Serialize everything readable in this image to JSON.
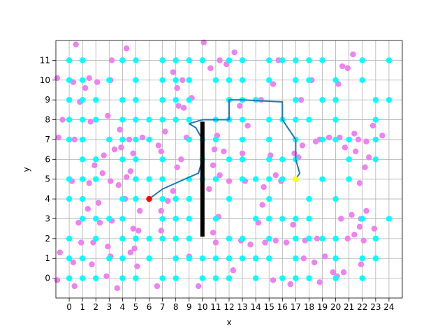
{
  "chart_data": {
    "type": "scatter",
    "x_label": "x",
    "y_label": "y",
    "grid": true,
    "xlim": [
      -1,
      25
    ],
    "ylim": [
      -1,
      12
    ],
    "xticks": [
      0,
      1,
      2,
      3,
      4,
      5,
      6,
      7,
      8,
      9,
      10,
      11,
      12,
      13,
      14,
      15,
      16,
      17,
      18,
      19,
      20,
      21,
      22,
      23,
      24
    ],
    "yticks": [
      0,
      1,
      2,
      3,
      4,
      5,
      6,
      7,
      8,
      9,
      10,
      11
    ],
    "series": [
      {
        "type": "scatter",
        "color": "#ee82ee",
        "x": [
          -0.9,
          0.5,
          0.3,
          1.2,
          1.5,
          2.1,
          3.2,
          4.3,
          3.1,
          -0.5,
          0.8,
          1.6,
          2.9,
          3.8,
          4.5,
          5.5,
          6.7,
          7.2,
          6.9,
          -0.8,
          0.4,
          2.6,
          3.4,
          3.9,
          4.8,
          1.9,
          2.5,
          3.1,
          3.7,
          4.3,
          4.6,
          0.2,
          1.5,
          2.2,
          4.2,
          5.3,
          6.9,
          7.4,
          1.4,
          0.7,
          2.3,
          3.2,
          4.8,
          5.2,
          6.9,
          0.9,
          1.8,
          2.9,
          4.6,
          4.9,
          -0.7,
          0.3,
          1.7,
          3.1,
          5.1,
          6.6,
          2.8,
          3.6,
          0.4,
          -0.9,
          7.8,
          8.5,
          8.1,
          9.2,
          10.1,
          10.6,
          11.3,
          11.8,
          12.4,
          8.2,
          8.6,
          11.1,
          10.9,
          11.6,
          8.8,
          8.4,
          8.1,
          7.8,
          10.8,
          10.5,
          11.3,
          12,
          11.2,
          10.8,
          11,
          9,
          8,
          9.7,
          12.3,
          12.9,
          13.6,
          13.2,
          13,
          12.8,
          13.4,
          14.4,
          15.3,
          15.7,
          14.6,
          14.5,
          14.2,
          14.7,
          15.5,
          16.3,
          15.1,
          15.5,
          15.9,
          16.9,
          17.2,
          17.5,
          18.5,
          18.8,
          19.5,
          17.4,
          18.2,
          16.8,
          17.7,
          18.6,
          17.6,
          18.4,
          19.2,
          19.8,
          20.1,
          20.6,
          18.8,
          16.6,
          15.3,
          20.2,
          20.5,
          20.9,
          21.3,
          20.3,
          20.7,
          21.4,
          21.7,
          22.3,
          21.5,
          22.5,
          22.8,
          23.5,
          22.2,
          21.8,
          22.3,
          21.2,
          21.9,
          21.4,
          22.1,
          21.8,
          22.9,
          21.9,
          20.9,
          20.4
        ],
        "y": [
          10.1,
          11.8,
          9.9,
          9.6,
          10.1,
          9.9,
          11,
          11.6,
          10,
          8,
          8.9,
          7.9,
          8.2,
          7.5,
          7,
          7.1,
          6.7,
          7.4,
          6.4,
          7.1,
          7,
          6.2,
          6.5,
          6.6,
          6.3,
          5.7,
          5.3,
          4.9,
          4.7,
          5.1,
          5.4,
          4.9,
          4.8,
          3.8,
          4,
          3.4,
          3.4,
          3.9,
          3.5,
          2.8,
          2.8,
          2.9,
          2.5,
          2.4,
          2.4,
          1.8,
          1.8,
          1.6,
          1.3,
          1.5,
          1.3,
          0.8,
          0.7,
          1.1,
          0.6,
          -0.4,
          0.1,
          -0.5,
          -0.4,
          -0.1,
          10.4,
          10,
          9.6,
          9.1,
          11.9,
          10.6,
          11,
          10.8,
          11.4,
          8.7,
          8.6,
          7.2,
          6.5,
          6.4,
          7.1,
          6,
          5.6,
          4.4,
          5.7,
          4.5,
          5.2,
          4.9,
          3.1,
          2.3,
          1.8,
          1.1,
          1,
          -0.4,
          0.4,
          1.9,
          1.7,
          4.9,
          6.3,
          8.7,
          7.7,
          9,
          9.8,
          11,
          4.6,
          3.7,
          2.8,
          1.8,
          1.9,
          1.8,
          6.2,
          5.2,
          4.9,
          6.3,
          6.1,
          6.7,
          6.9,
          7,
          7.1,
          9,
          10,
          2.7,
          1.9,
          2,
          1,
          0.8,
          1.1,
          0.3,
          0.1,
          0.3,
          -0.2,
          -0.3,
          -0.1,
          9.8,
          10.7,
          10.6,
          11.3,
          7.1,
          6.6,
          7.3,
          7,
          6.9,
          6.4,
          6.1,
          7.7,
          7.2,
          5.6,
          4.8,
          3.4,
          3.2,
          3,
          2.2,
          1.9,
          2.6,
          2.5,
          0.7,
          2,
          3
        ]
      },
      {
        "type": "scatter",
        "color": "#00ffff",
        "x": [
          0,
          1,
          4,
          5,
          7,
          8,
          9,
          10,
          12,
          13,
          15,
          16,
          17,
          18,
          19,
          22,
          24,
          0,
          1,
          3,
          5,
          7,
          8,
          9,
          11,
          12,
          13,
          15,
          17,
          18,
          20,
          22,
          0,
          1,
          2,
          4,
          5,
          7,
          8,
          9,
          12,
          13,
          14,
          17,
          19,
          20,
          23,
          24,
          0,
          1,
          2,
          4,
          5,
          6,
          7,
          8,
          9,
          11,
          12,
          13,
          15,
          16,
          17,
          18,
          20,
          23,
          0,
          1,
          3,
          4,
          5,
          6,
          9,
          10,
          11,
          13,
          15,
          17,
          19,
          20,
          21,
          23,
          1,
          2,
          4,
          5,
          7,
          10,
          12,
          13,
          15,
          16,
          17,
          21,
          23,
          0,
          1,
          2,
          5,
          6,
          7,
          9,
          10,
          11,
          13,
          14,
          15,
          16,
          17,
          19,
          21,
          0,
          1,
          4,
          5,
          7,
          8,
          9,
          12,
          15,
          18,
          20,
          1,
          2,
          3,
          4,
          7,
          8,
          9,
          11,
          14,
          15,
          16,
          17,
          18,
          22,
          24,
          0,
          2,
          4,
          5,
          6,
          7,
          8,
          9,
          12,
          13,
          15,
          17,
          18,
          19,
          20,
          23,
          0,
          1,
          3,
          4,
          6,
          8,
          9,
          10,
          11,
          12,
          13,
          14,
          15,
          17,
          20,
          22,
          23,
          0,
          1,
          2,
          4,
          5,
          7,
          8,
          10,
          11,
          12,
          14,
          16,
          17,
          18,
          20,
          22
        ],
        "y": [
          11,
          11,
          11,
          11,
          11,
          11,
          11,
          11,
          11,
          11,
          11,
          11,
          11,
          11,
          11,
          11,
          11,
          10,
          10,
          10,
          10,
          10,
          10,
          10,
          10,
          10,
          10,
          10,
          10,
          10,
          10,
          10,
          9,
          9,
          9,
          9,
          9,
          9,
          9,
          9,
          9,
          9,
          9,
          9,
          9,
          9,
          9,
          9,
          8,
          8,
          8,
          8,
          8,
          8,
          8,
          8,
          8,
          8,
          8,
          8,
          8,
          8,
          8,
          8,
          8,
          8,
          7,
          7,
          7,
          7,
          7,
          7,
          7,
          7,
          7,
          7,
          7,
          7,
          7,
          7,
          7,
          7,
          6,
          6,
          6,
          6,
          6,
          6,
          6,
          6,
          6,
          6,
          6,
          6,
          6,
          5,
          5,
          5,
          5,
          5,
          5,
          5,
          5,
          5,
          5,
          5,
          5,
          5,
          5,
          5,
          5,
          4,
          4,
          4,
          4,
          4,
          4,
          4,
          4,
          4,
          4,
          4,
          3,
          3,
          3,
          3,
          3,
          3,
          3,
          3,
          3,
          3,
          3,
          3,
          3,
          3,
          3,
          2,
          2,
          2,
          2,
          2,
          2,
          2,
          2,
          2,
          2,
          2,
          2,
          2,
          2,
          2,
          2,
          1,
          1,
          1,
          1,
          1,
          1,
          1,
          1,
          1,
          1,
          1,
          1,
          1,
          1,
          1,
          1,
          1,
          0,
          0,
          0,
          0,
          0,
          0,
          0,
          0,
          0,
          0,
          0,
          0,
          0,
          0,
          0,
          0
        ]
      },
      {
        "type": "line",
        "color": "#1f77b4",
        "x": [
          6,
          7,
          8,
          9,
          9.7,
          10,
          10,
          9.5,
          9,
          10,
          12,
          12,
          13,
          16,
          16,
          17,
          17,
          17.3,
          17
        ],
        "y": [
          4,
          4.5,
          4.8,
          5.1,
          5.3,
          6,
          7,
          7.6,
          7.8,
          8,
          8,
          9,
          9,
          8.9,
          8,
          7,
          6,
          5.3,
          5
        ]
      },
      {
        "type": "line",
        "color": "#000000",
        "x": [
          10,
          10
        ],
        "y": [
          2.1,
          7.9
        ]
      },
      {
        "type": "scatter",
        "color": "#ff0000",
        "x": [
          6
        ],
        "y": [
          4
        ]
      },
      {
        "type": "scatter",
        "color": "#ffff00",
        "x": [
          17
        ],
        "y": [
          5
        ]
      }
    ]
  }
}
